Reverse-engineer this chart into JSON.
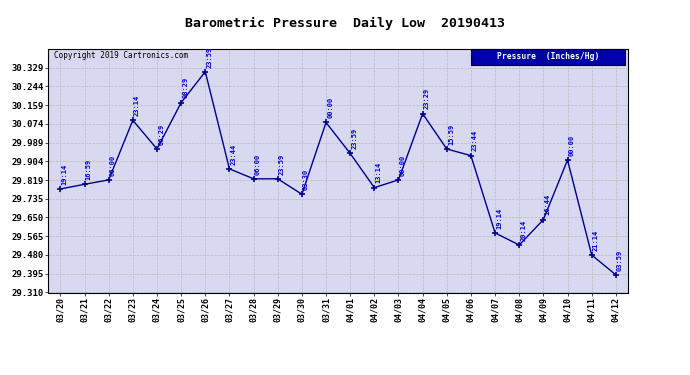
{
  "title": "Barometric Pressure  Daily Low  20190413",
  "copyright": "Copyright 2019 Cartronics.com",
  "legend_label": "Pressure  (Inches/Hg)",
  "x_labels": [
    "03/20",
    "03/21",
    "03/22",
    "03/23",
    "03/24",
    "03/25",
    "03/26",
    "03/27",
    "03/28",
    "03/29",
    "03/30",
    "03/31",
    "04/01",
    "04/02",
    "04/03",
    "04/04",
    "04/05",
    "04/06",
    "04/07",
    "04/08",
    "04/09",
    "04/10",
    "04/11",
    "04/12"
  ],
  "y_values": [
    29.779,
    29.8,
    29.82,
    30.09,
    29.96,
    30.17,
    30.31,
    29.87,
    29.825,
    29.825,
    29.755,
    30.08,
    29.94,
    29.785,
    29.82,
    30.12,
    29.96,
    29.93,
    29.58,
    29.525,
    29.64,
    29.91,
    29.48,
    29.39
  ],
  "point_labels": [
    "19:14",
    "16:59",
    "06:00",
    "23:14",
    "06:29",
    "08:29",
    "23:59",
    "23:44",
    "06:00",
    "23:59",
    "03:30",
    "00:00",
    "23:59",
    "13:14",
    "00:00",
    "23:29",
    "15:59",
    "23:44",
    "19:14",
    "20:14",
    "16:44",
    "00:00",
    "21:14",
    "03:59"
  ],
  "line_color": "#00008B",
  "marker_color": "#00008B",
  "label_color": "#0000CD",
  "background_color": "#FFFFFF",
  "plot_bg_color": "#D8D8F0",
  "grid_color": "#BBBBBB",
  "ylim_min": 29.31,
  "ylim_max": 30.414,
  "yticks": [
    29.31,
    29.395,
    29.48,
    29.565,
    29.65,
    29.735,
    29.819,
    29.904,
    29.989,
    30.074,
    30.159,
    30.244,
    30.329
  ]
}
